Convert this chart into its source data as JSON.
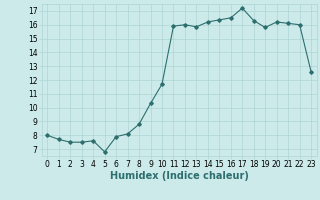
{
  "x": [
    0,
    1,
    2,
    3,
    4,
    5,
    6,
    7,
    8,
    9,
    10,
    11,
    12,
    13,
    14,
    15,
    16,
    17,
    18,
    19,
    20,
    21,
    22,
    23
  ],
  "y": [
    8.0,
    7.7,
    7.5,
    7.5,
    7.6,
    6.8,
    7.9,
    8.1,
    8.8,
    10.3,
    11.7,
    15.9,
    16.0,
    15.85,
    16.2,
    16.35,
    16.5,
    17.2,
    16.3,
    15.8,
    16.2,
    16.1,
    16.0,
    12.6
  ],
  "line_color": "#2d6e6e",
  "marker": "D",
  "markersize": 1.8,
  "linewidth": 0.8,
  "xlabel": "Humidex (Indice chaleur)",
  "xlim": [
    -0.5,
    23.5
  ],
  "ylim": [
    6.5,
    17.5
  ],
  "yticks": [
    7,
    8,
    9,
    10,
    11,
    12,
    13,
    14,
    15,
    16,
    17
  ],
  "xticks": [
    0,
    1,
    2,
    3,
    4,
    5,
    6,
    7,
    8,
    9,
    10,
    11,
    12,
    13,
    14,
    15,
    16,
    17,
    18,
    19,
    20,
    21,
    22,
    23
  ],
  "bg_color": "#cceaea",
  "grid_color": "#aed4d4",
  "tick_fontsize": 5.5,
  "xlabel_fontsize": 7.0
}
